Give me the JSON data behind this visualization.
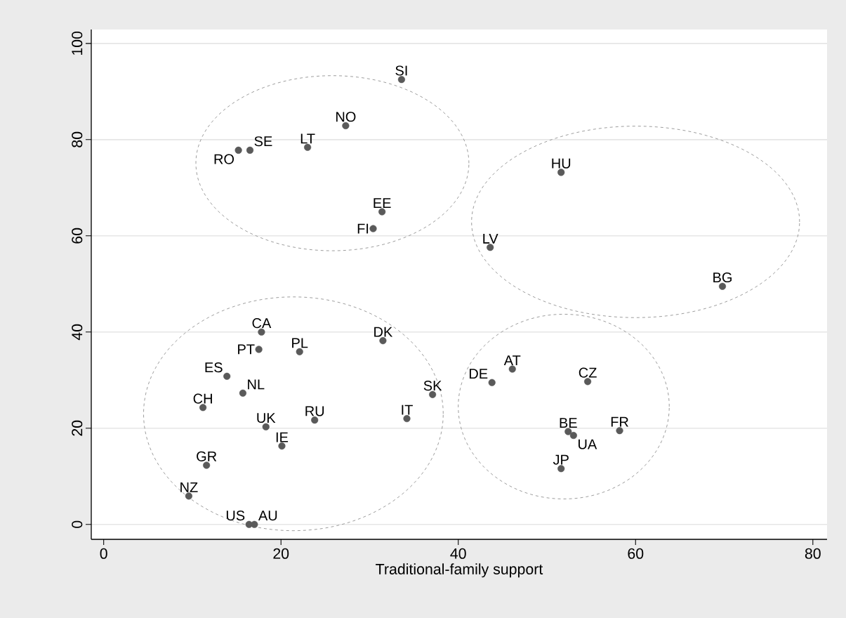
{
  "chart_data": {
    "type": "scatter",
    "xlabel": "Traditional-family support",
    "color": "#5a5a5a",
    "marker": "circle",
    "grid": "y",
    "xlim": [
      -1.4,
      81.6
    ],
    "ylim": [
      -3.1,
      102.9
    ],
    "xticks": [
      0,
      20,
      40,
      60,
      80
    ],
    "yticks": [
      0,
      20,
      40,
      60,
      80,
      100
    ],
    "x": [
      33.6,
      27.3,
      23.0,
      16.5,
      15.2,
      31.4,
      30.4,
      51.6,
      43.6,
      69.8,
      17.8,
      17.5,
      22.1,
      31.5,
      13.9,
      15.7,
      11.2,
      37.1,
      34.2,
      23.8,
      18.3,
      20.1,
      11.6,
      9.6,
      16.4,
      17.0,
      46.1,
      43.8,
      54.6,
      52.4,
      53.0,
      58.2,
      51.6
    ],
    "values": [
      92.5,
      82.9,
      78.4,
      77.8,
      77.8,
      65.0,
      61.5,
      73.2,
      57.6,
      49.5,
      40.0,
      36.4,
      35.9,
      38.2,
      30.8,
      27.3,
      24.3,
      27.0,
      22.0,
      21.7,
      20.3,
      16.3,
      12.3,
      5.9,
      0,
      0,
      32.3,
      29.5,
      29.7,
      19.3,
      18.5,
      19.5,
      11.6
    ],
    "annotations": [
      {
        "text": "SI",
        "x": 33.6,
        "y": 92.5
      },
      {
        "text": "NO",
        "x": 27.3,
        "y": 82.9
      },
      {
        "text": "LT",
        "x": 23.0,
        "y": 78.4
      },
      {
        "text": "SE",
        "x": 16.5,
        "y": 77.8
      },
      {
        "text": "RO",
        "x": 15.2,
        "y": 77.8
      },
      {
        "text": "EE",
        "x": 31.4,
        "y": 65.0
      },
      {
        "text": "FI",
        "x": 30.4,
        "y": 61.5
      },
      {
        "text": "HU",
        "x": 51.6,
        "y": 73.2
      },
      {
        "text": "LV",
        "x": 43.6,
        "y": 57.6
      },
      {
        "text": "BG",
        "x": 69.8,
        "y": 49.5
      },
      {
        "text": "CA",
        "x": 17.8,
        "y": 40.0
      },
      {
        "text": "PT",
        "x": 17.5,
        "y": 36.4
      },
      {
        "text": "PL",
        "x": 22.1,
        "y": 35.9
      },
      {
        "text": "DK",
        "x": 31.5,
        "y": 38.2
      },
      {
        "text": "ES",
        "x": 13.9,
        "y": 30.8
      },
      {
        "text": "NL",
        "x": 15.7,
        "y": 27.3
      },
      {
        "text": "CH",
        "x": 11.2,
        "y": 24.3
      },
      {
        "text": "SK",
        "x": 37.1,
        "y": 27.0
      },
      {
        "text": "IT",
        "x": 34.2,
        "y": 22.0
      },
      {
        "text": "RU",
        "x": 23.8,
        "y": 21.7
      },
      {
        "text": "UK",
        "x": 18.3,
        "y": 20.3
      },
      {
        "text": "IE",
        "x": 20.1,
        "y": 16.3
      },
      {
        "text": "GR",
        "x": 11.6,
        "y": 12.3
      },
      {
        "text": "NZ",
        "x": 9.6,
        "y": 5.9
      },
      {
        "text": "US",
        "x": 16.4,
        "y": 0
      },
      {
        "text": "AU",
        "x": 17.0,
        "y": 0
      },
      {
        "text": "AT",
        "x": 46.1,
        "y": 32.3
      },
      {
        "text": "DE",
        "x": 43.8,
        "y": 29.5
      },
      {
        "text": "CZ",
        "x": 54.6,
        "y": 29.7
      },
      {
        "text": "BE",
        "x": 52.4,
        "y": 19.3
      },
      {
        "text": "UA",
        "x": 53.0,
        "y": 18.5
      },
      {
        "text": "FR",
        "x": 58.2,
        "y": 19.5
      },
      {
        "text": "JP",
        "x": 51.6,
        "y": 11.6
      }
    ]
  }
}
